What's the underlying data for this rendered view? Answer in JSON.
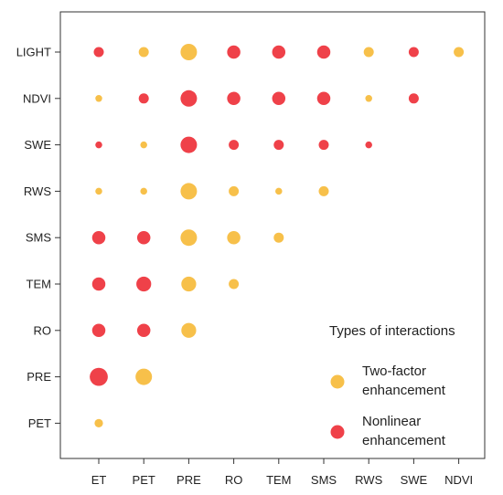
{
  "chart_data": {
    "type": "scatter",
    "x_categories": [
      "ET",
      "PET",
      "PRE",
      "RO",
      "TEM",
      "SMS",
      "RWS",
      "SWE",
      "NDVI"
    ],
    "y_categories": [
      "LIGHT",
      "NDVI",
      "SWE",
      "RWS",
      "SMS",
      "TEM",
      "RO",
      "PRE",
      "PET"
    ],
    "colors": {
      "two_factor": "#F7C04A",
      "nonlinear": "#EF4149"
    },
    "legend": {
      "title": "Types of interactions",
      "placement": "bottom-right",
      "entries": [
        {
          "type": "two_factor",
          "label_lines": [
            "Two-factor",
            "enhancement"
          ]
        },
        {
          "type": "nonlinear",
          "label_lines": [
            "Nonlinear",
            "enhancement"
          ]
        }
      ]
    },
    "points": [
      {
        "x": "ET",
        "y": "LIGHT",
        "type": "nonlinear",
        "size": 2
      },
      {
        "x": "PET",
        "y": "LIGHT",
        "type": "two_factor",
        "size": 2
      },
      {
        "x": "PRE",
        "y": "LIGHT",
        "type": "two_factor",
        "size": 4
      },
      {
        "x": "RO",
        "y": "LIGHT",
        "type": "nonlinear",
        "size": 3
      },
      {
        "x": "TEM",
        "y": "LIGHT",
        "type": "nonlinear",
        "size": 3
      },
      {
        "x": "SMS",
        "y": "LIGHT",
        "type": "nonlinear",
        "size": 3
      },
      {
        "x": "RWS",
        "y": "LIGHT",
        "type": "two_factor",
        "size": 2
      },
      {
        "x": "SWE",
        "y": "LIGHT",
        "type": "nonlinear",
        "size": 2
      },
      {
        "x": "NDVI",
        "y": "LIGHT",
        "type": "two_factor",
        "size": 2
      },
      {
        "x": "ET",
        "y": "NDVI",
        "type": "two_factor",
        "size": 1
      },
      {
        "x": "PET",
        "y": "NDVI",
        "type": "nonlinear",
        "size": 2
      },
      {
        "x": "PRE",
        "y": "NDVI",
        "type": "nonlinear",
        "size": 4
      },
      {
        "x": "RO",
        "y": "NDVI",
        "type": "nonlinear",
        "size": 3
      },
      {
        "x": "TEM",
        "y": "NDVI",
        "type": "nonlinear",
        "size": 3
      },
      {
        "x": "SMS",
        "y": "NDVI",
        "type": "nonlinear",
        "size": 3
      },
      {
        "x": "RWS",
        "y": "NDVI",
        "type": "two_factor",
        "size": 1
      },
      {
        "x": "SWE",
        "y": "NDVI",
        "type": "nonlinear",
        "size": 2
      },
      {
        "x": "ET",
        "y": "SWE",
        "type": "nonlinear",
        "size": 1
      },
      {
        "x": "PET",
        "y": "SWE",
        "type": "two_factor",
        "size": 1
      },
      {
        "x": "PRE",
        "y": "SWE",
        "type": "nonlinear",
        "size": 4
      },
      {
        "x": "RO",
        "y": "SWE",
        "type": "nonlinear",
        "size": 2
      },
      {
        "x": "TEM",
        "y": "SWE",
        "type": "nonlinear",
        "size": 2
      },
      {
        "x": "SMS",
        "y": "SWE",
        "type": "nonlinear",
        "size": 2
      },
      {
        "x": "RWS",
        "y": "SWE",
        "type": "nonlinear",
        "size": 1
      },
      {
        "x": "ET",
        "y": "RWS",
        "type": "two_factor",
        "size": 1
      },
      {
        "x": "PET",
        "y": "RWS",
        "type": "two_factor",
        "size": 1
      },
      {
        "x": "PRE",
        "y": "RWS",
        "type": "two_factor",
        "size": 4
      },
      {
        "x": "RO",
        "y": "RWS",
        "type": "two_factor",
        "size": 2
      },
      {
        "x": "TEM",
        "y": "RWS",
        "type": "two_factor",
        "size": 1
      },
      {
        "x": "SMS",
        "y": "RWS",
        "type": "two_factor",
        "size": 2
      },
      {
        "x": "ET",
        "y": "SMS",
        "type": "nonlinear",
        "size": 3
      },
      {
        "x": "PET",
        "y": "SMS",
        "type": "nonlinear",
        "size": 3
      },
      {
        "x": "PRE",
        "y": "SMS",
        "type": "two_factor",
        "size": 4
      },
      {
        "x": "RO",
        "y": "SMS",
        "type": "two_factor",
        "size": 3
      },
      {
        "x": "TEM",
        "y": "SMS",
        "type": "two_factor",
        "size": 2
      },
      {
        "x": "ET",
        "y": "TEM",
        "type": "nonlinear",
        "size": 3
      },
      {
        "x": "PET",
        "y": "TEM",
        "type": "nonlinear",
        "size": 3.5
      },
      {
        "x": "PRE",
        "y": "TEM",
        "type": "two_factor",
        "size": 3.5
      },
      {
        "x": "RO",
        "y": "TEM",
        "type": "two_factor",
        "size": 2
      },
      {
        "x": "ET",
        "y": "RO",
        "type": "nonlinear",
        "size": 3
      },
      {
        "x": "PET",
        "y": "RO",
        "type": "nonlinear",
        "size": 3
      },
      {
        "x": "PRE",
        "y": "RO",
        "type": "two_factor",
        "size": 3.5
      },
      {
        "x": "ET",
        "y": "PRE",
        "type": "nonlinear",
        "size": 4.5
      },
      {
        "x": "PET",
        "y": "PRE",
        "type": "two_factor",
        "size": 4
      },
      {
        "x": "ET",
        "y": "PET",
        "type": "two_factor",
        "size": 1.5
      }
    ]
  }
}
